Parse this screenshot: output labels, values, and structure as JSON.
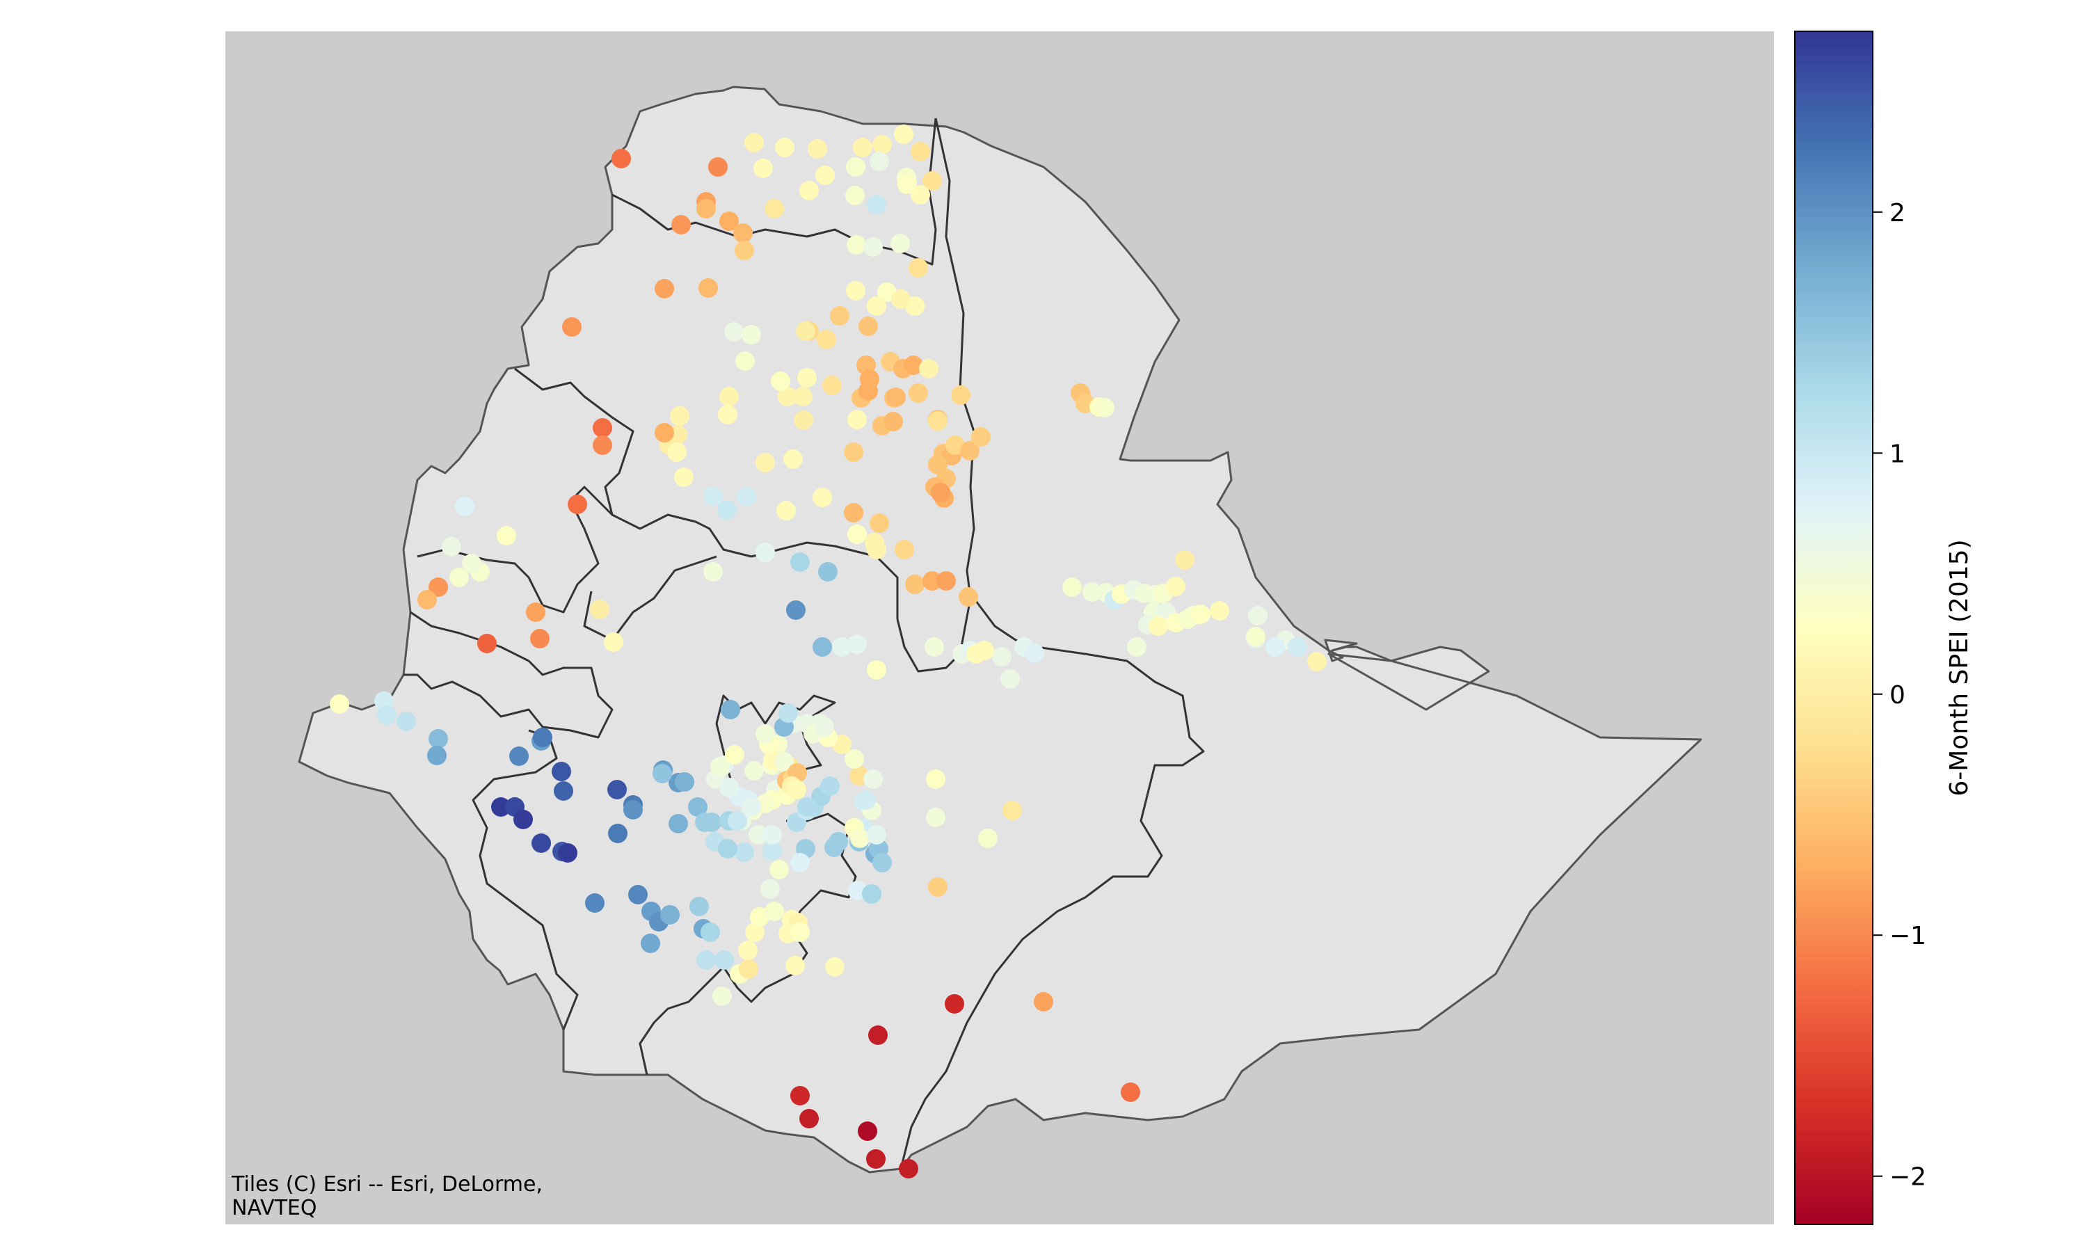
{
  "map": {
    "attribution_line1": "Tiles (C) Esri -- Esri, DeLorme,",
    "attribution_line2": "NAVTEQ",
    "basemap_color": "#cccccc",
    "land_color": "#e3e3e3",
    "border_color": "#555555"
  },
  "colorbar": {
    "title": "6-Month SPEI (2015)",
    "min": -2.2,
    "max": 2.75,
    "ticks": [
      {
        "value": 2,
        "label": "2"
      },
      {
        "value": 1,
        "label": "1"
      },
      {
        "value": 0,
        "label": "0"
      },
      {
        "value": -1,
        "label": "−1"
      },
      {
        "value": -2,
        "label": "−2"
      }
    ],
    "colors": [
      "#a50026",
      "#d73027",
      "#f46d43",
      "#fdae61",
      "#fee090",
      "#ffffbf",
      "#e0f3f8",
      "#abd9e9",
      "#74add1",
      "#4575b4",
      "#313695"
    ]
  }
}
